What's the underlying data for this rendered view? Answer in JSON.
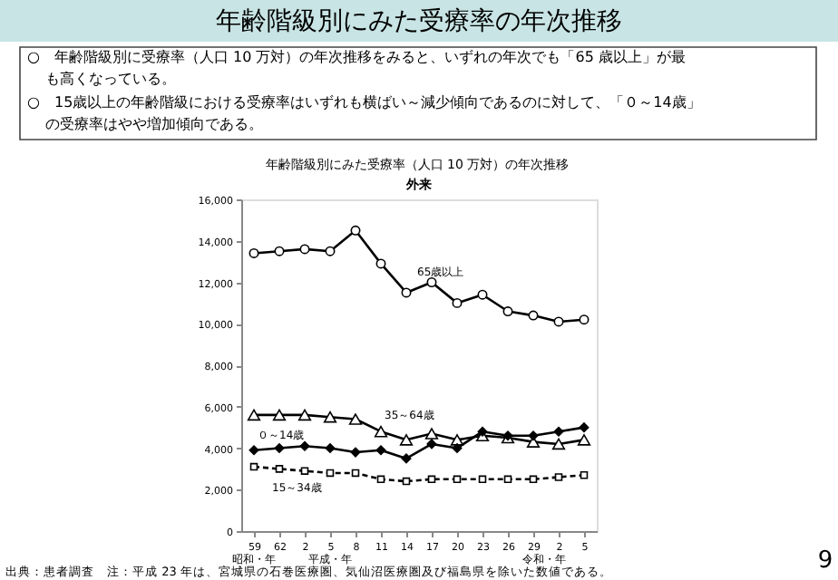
{
  "chart_data": {
    "type": "line",
    "title": "年齢階級別にみた受療率の年次推移",
    "subtitle": "年齢階級別にみた受療率（人口 10 万対）の年次推移",
    "annotations": [
      "○　年齢階級別に受療率（人口 10 万対）の年次推移をみると、いずれの年次でも「65 歳以上」が最",
      "も高くなっている。",
      "○　15歳以上の年齢階級における受療率はいずれも横ばい～減少傾向であるのに対して、「０～14歳」",
      "の受療率はやや増加傾向である。",
      "外来",
      "昭和・年",
      "平成・年",
      "令和・年",
      "出典：患者調査　注：平成 23 年は、宮城県の石巻医療圏、気仙沼医療圏及び福島県を除いた数値である。",
      "9"
    ],
    "categories": [
      "59",
      "62",
      "2",
      "5",
      "8",
      "11",
      "14",
      "17",
      "20",
      "23",
      "26",
      "29",
      "2",
      "5"
    ],
    "ylim": [
      0,
      16000
    ],
    "yticks": [
      0,
      {
        "value": 2000,
        "label": "2,000"
      },
      {
        "value": 4000,
        "label": "4,000"
      },
      {
        "value": 6000,
        "label": "6,000"
      },
      {
        "value": 8000,
        "label": "8,000"
      },
      {
        "value": 10000,
        "label": "10,000"
      },
      {
        "value": 12000,
        "label": "12,000"
      },
      {
        "value": 14000,
        "label": "14,000"
      },
      {
        "value": 16000,
        "label": "16,000"
      }
    ],
    "grid": false,
    "series": [
      {
        "name": "65歳以上",
        "color": "#000000",
        "marker": "circle",
        "line_style": "solid",
        "values": [
          13400,
          13500,
          13600,
          13500,
          14500,
          12900,
          11500,
          12000,
          11000,
          11400,
          10600,
          10400,
          10100,
          10200
        ]
      },
      {
        "name": "35～64歳",
        "color": "#000000",
        "marker": "triangle",
        "line_style": "solid",
        "values": [
          5600,
          5600,
          5600,
          5500,
          5400,
          4800,
          4400,
          4700,
          4400,
          4600,
          4500,
          4300,
          4200,
          4400
        ]
      },
      {
        "name": "０～14歳",
        "color": "#000000",
        "marker": "diamond",
        "line_style": "solid",
        "values": [
          3900,
          4000,
          4100,
          4000,
          3800,
          3900,
          3500,
          4200,
          4000,
          4800,
          4600,
          4600,
          4800,
          5000
        ]
      },
      {
        "name": "15～34歳",
        "color": "#000000",
        "marker": "square",
        "line_style": "dashed",
        "values": [
          3100,
          3000,
          2900,
          2800,
          2800,
          2500,
          2400,
          2500,
          2500,
          2500,
          2500,
          2500,
          2600,
          2700
        ]
      }
    ]
  }
}
